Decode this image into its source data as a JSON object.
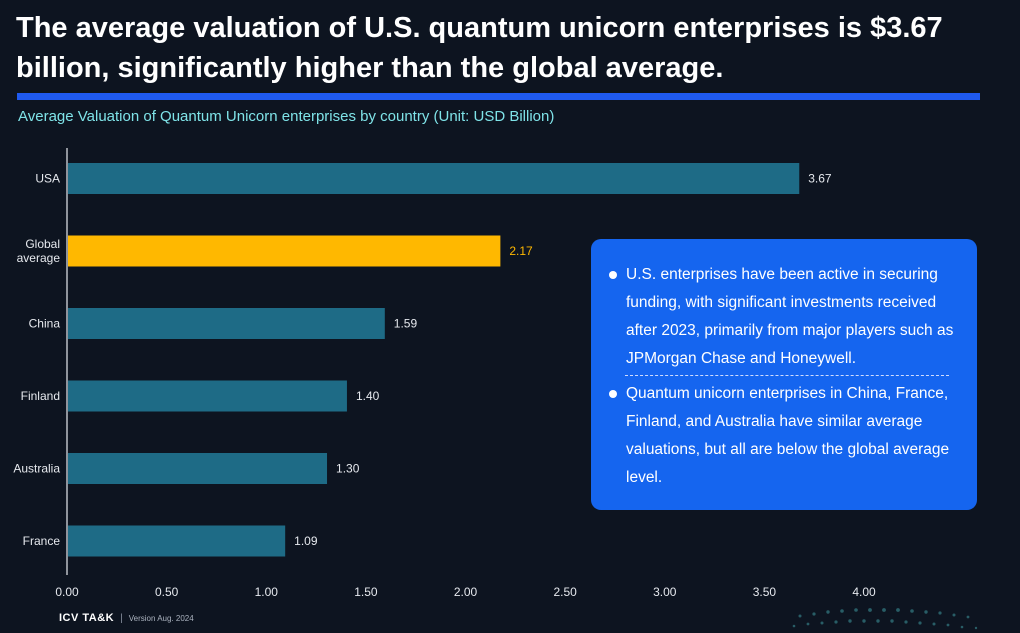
{
  "headline": "The average valuation of U.S. quantum unicorn enterprises is $3.67 billion, significantly higher than the global average.",
  "colors": {
    "bar": "#1e6b86",
    "highlight": "#ffb800",
    "callout": "#1565ef",
    "accent": "#1f5af0"
  },
  "chart_data": {
    "type": "bar",
    "orientation": "horizontal",
    "title": "Average Valuation of Quantum Unicorn enterprises by country (Unit: USD Billion)",
    "categories": [
      "USA",
      "Global\naverage",
      "China",
      "Finland",
      "Australia",
      "France"
    ],
    "values": [
      3.67,
      2.17,
      1.59,
      1.4,
      1.3,
      1.09
    ],
    "value_labels": [
      "3.67",
      "2.17",
      "1.59",
      "1.40",
      "1.30",
      "1.09"
    ],
    "highlight_index": 1,
    "xlim": [
      0,
      4
    ],
    "xticks": [
      "0.00",
      "0.50",
      "1.00",
      "1.50",
      "2.00",
      "2.50",
      "3.00",
      "3.50",
      "4.00"
    ],
    "grid": false
  },
  "callout": {
    "points": [
      "U.S. enterprises have been active in securing funding, with significant investments received after 2023, primarily from major players such as JPMorgan Chase and Honeywell.",
      "Quantum unicorn enterprises in China, France, Finland, and Australia have similar average valuations, but all are below the global average level."
    ]
  },
  "footer": {
    "brand": "ICV TA&K",
    "separator": "|",
    "version": "Version Aug. 2024"
  }
}
